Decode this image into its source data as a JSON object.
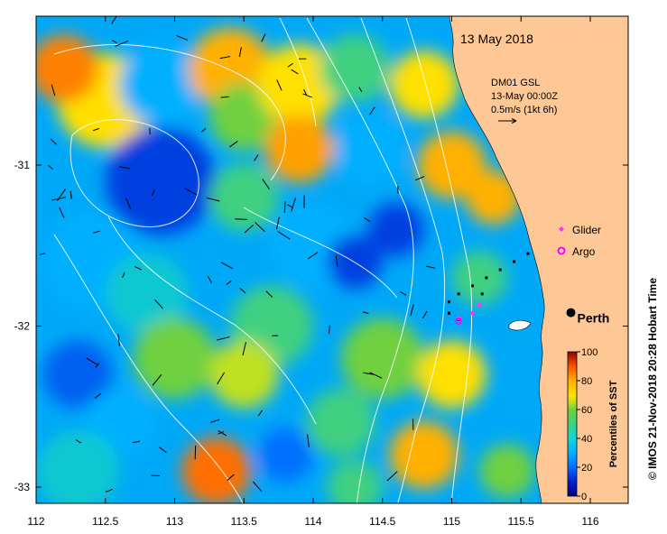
{
  "map": {
    "date_title": "13 May 2018",
    "product_lines": [
      "DM01 GSL",
      "13-May 00:00Z",
      "0.5m/s (1kt 6h)"
    ],
    "legend": [
      {
        "label": "Glider",
        "marker": "magenta-diamond",
        "color": "#ff33ff"
      },
      {
        "label": "Argo",
        "marker": "magenta-circle",
        "color": "#ff00ff"
      }
    ],
    "city": "Perth",
    "copyright": "© IMOS 21-Nov-2018 20:28 Hobart Time",
    "x_ticks": [
      "112",
      "112.5",
      "113",
      "113.5",
      "114",
      "114.5",
      "115",
      "115.5",
      "116"
    ],
    "y_ticks": [
      "-31",
      "-32",
      "-33"
    ],
    "x_range": [
      112,
      116.3
    ],
    "y_range": [
      -30.1,
      -33.1
    ],
    "colorbar": {
      "title": "Percentiles of SST",
      "ticks": [
        "100",
        "80",
        "60",
        "40",
        "20",
        "0"
      ],
      "colors": [
        "#00007f",
        "#0020d0",
        "#0070ff",
        "#00b0ff",
        "#10d8d8",
        "#40d080",
        "#70d040",
        "#c0e020",
        "#ffe000",
        "#ffb000",
        "#ff7000",
        "#d02000",
        "#900000"
      ]
    },
    "land_color": "#fdc896",
    "sst_blobs": [
      {
        "lon": 112.5,
        "lat": -30.6,
        "color": "#ffe000",
        "r": 0.35
      },
      {
        "lon": 112.2,
        "lat": -30.4,
        "color": "#ff8000",
        "r": 0.25
      },
      {
        "lon": 112.9,
        "lat": -30.5,
        "color": "#00b0ff",
        "r": 0.3
      },
      {
        "lon": 112.9,
        "lat": -31.1,
        "color": "#0040e0",
        "r": 0.4
      },
      {
        "lon": 113.4,
        "lat": -30.4,
        "color": "#ffb000",
        "r": 0.3
      },
      {
        "lon": 113.5,
        "lat": -30.7,
        "color": "#70d040",
        "r": 0.25
      },
      {
        "lon": 113.9,
        "lat": -30.5,
        "color": "#ffe000",
        "r": 0.3
      },
      {
        "lon": 113.9,
        "lat": -30.9,
        "color": "#ffa000",
        "r": 0.25
      },
      {
        "lon": 114.3,
        "lat": -30.4,
        "color": "#40d080",
        "r": 0.25
      },
      {
        "lon": 114.4,
        "lat": -30.9,
        "color": "#00b0ff",
        "r": 0.25
      },
      {
        "lon": 114.8,
        "lat": -30.5,
        "color": "#ffe000",
        "r": 0.25
      },
      {
        "lon": 115.0,
        "lat": -31.0,
        "color": "#ffb000",
        "r": 0.25
      },
      {
        "lon": 113.5,
        "lat": -31.2,
        "color": "#40d080",
        "r": 0.25
      },
      {
        "lon": 114.0,
        "lat": -31.5,
        "color": "#00b0ff",
        "r": 0.3
      },
      {
        "lon": 114.3,
        "lat": -31.6,
        "color": "#0040e0",
        "r": 0.2
      },
      {
        "lon": 114.6,
        "lat": -31.4,
        "color": "#0040e0",
        "r": 0.2
      },
      {
        "lon": 112.4,
        "lat": -31.6,
        "color": "#00b0ff",
        "r": 0.35
      },
      {
        "lon": 112.8,
        "lat": -31.8,
        "color": "#10c8d0",
        "r": 0.3
      },
      {
        "lon": 113.0,
        "lat": -32.2,
        "color": "#70d040",
        "r": 0.3
      },
      {
        "lon": 113.7,
        "lat": -32.0,
        "color": "#40d080",
        "r": 0.3
      },
      {
        "lon": 113.5,
        "lat": -32.3,
        "color": "#c0e020",
        "r": 0.25
      },
      {
        "lon": 112.3,
        "lat": -32.3,
        "color": "#0060f0",
        "r": 0.25
      },
      {
        "lon": 112.6,
        "lat": -32.6,
        "color": "#00b0ff",
        "r": 0.25
      },
      {
        "lon": 114.5,
        "lat": -32.2,
        "color": "#70d040",
        "r": 0.3
      },
      {
        "lon": 114.2,
        "lat": -32.6,
        "color": "#40d080",
        "r": 0.25
      },
      {
        "lon": 115.0,
        "lat": -32.3,
        "color": "#ffe000",
        "r": 0.25
      },
      {
        "lon": 115.2,
        "lat": -31.7,
        "color": "#40d080",
        "r": 0.2
      },
      {
        "lon": 115.3,
        "lat": -31.2,
        "color": "#ffb000",
        "r": 0.2
      },
      {
        "lon": 115.4,
        "lat": -32.9,
        "color": "#70d040",
        "r": 0.2
      },
      {
        "lon": 114.8,
        "lat": -32.8,
        "color": "#ffb000",
        "r": 0.25
      },
      {
        "lon": 113.3,
        "lat": -32.9,
        "color": "#ff7000",
        "r": 0.25
      },
      {
        "lon": 112.3,
        "lat": -32.9,
        "color": "#10c8d0",
        "r": 0.3
      },
      {
        "lon": 113.8,
        "lat": -32.8,
        "color": "#0070ff",
        "r": 0.2
      },
      {
        "lon": 114.3,
        "lat": -33.0,
        "color": "#40d080",
        "r": 0.2
      }
    ],
    "glider_track": [
      {
        "lon": 115.55,
        "lat": -31.55
      },
      {
        "lon": 115.45,
        "lat": -31.6
      },
      {
        "lon": 115.35,
        "lat": -31.65
      },
      {
        "lon": 115.25,
        "lat": -31.7
      },
      {
        "lon": 115.15,
        "lat": -31.75
      },
      {
        "lon": 115.05,
        "lat": -31.8
      },
      {
        "lon": 114.98,
        "lat": -31.85
      },
      {
        "lon": 114.98,
        "lat": -31.92
      },
      {
        "lon": 115.05,
        "lat": -31.96
      },
      {
        "lon": 115.15,
        "lat": -31.92
      },
      {
        "lon": 115.22,
        "lat": -31.8
      }
    ],
    "glider_recent": [
      {
        "lon": 115.05,
        "lat": -31.95
      },
      {
        "lon": 115.15,
        "lat": -31.92
      },
      {
        "lon": 115.2,
        "lat": -31.87
      }
    ],
    "argo": {
      "lon": 115.05,
      "lat": -31.97
    },
    "perth": {
      "lon": 115.86,
      "lat": -31.95
    }
  }
}
